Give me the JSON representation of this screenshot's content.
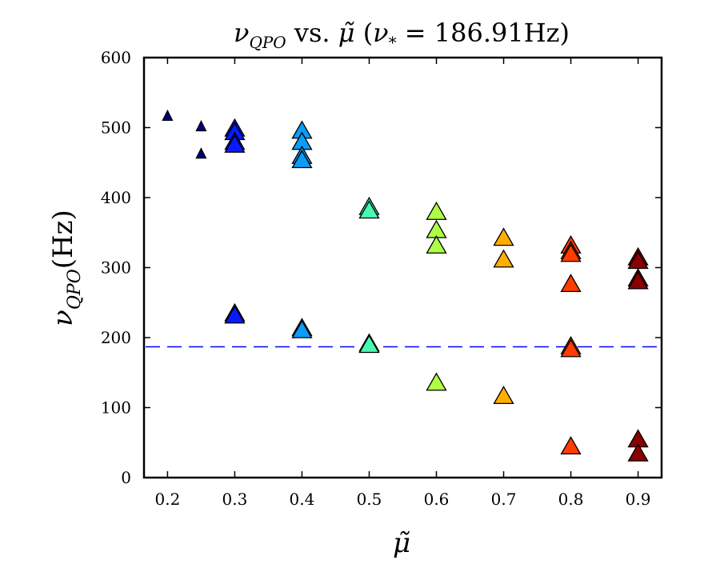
{
  "chart_data": {
    "type": "scatter",
    "title": "ν_QPO vs. μ̃ (ν* = 186.91Hz)",
    "title_parts": {
      "nu": "ν",
      "qpo_sub": "QPO",
      "vs": " vs. ",
      "mu": "μ̃",
      "open_paren": " (",
      "nu_star": "ν",
      "star_sub": "*",
      "equals_value": " = 186.91Hz)"
    },
    "xlabel": "μ̃",
    "ylabel": "ν_QPO(Hz)",
    "ylabel_parts": {
      "nu": "ν",
      "sub": "QPO",
      "unit": "(Hz)"
    },
    "xlim": [
      0.165,
      0.935
    ],
    "ylim": [
      0,
      600
    ],
    "x_ticks": [
      0.2,
      0.3,
      0.4,
      0.5,
      0.6,
      0.7,
      0.8,
      0.9
    ],
    "x_tick_labels": [
      "0.2",
      "0.3",
      "0.4",
      "0.5",
      "0.6",
      "0.7",
      "0.8",
      "0.9"
    ],
    "y_ticks": [
      0,
      100,
      200,
      300,
      400,
      500,
      600
    ],
    "y_tick_labels": [
      "0",
      "100",
      "200",
      "300",
      "400",
      "500",
      "600"
    ],
    "grid": false,
    "reference_line": {
      "y": 186.91,
      "label": "ν* = 186.91Hz",
      "color": "#0000ff",
      "style": "dashed"
    },
    "series": [
      {
        "name": "μ̃ = 0.2",
        "color": "#00007f",
        "marker_size": "small",
        "points": [
          [
            0.2,
            515
          ]
        ]
      },
      {
        "name": "μ̃ = 0.25",
        "color": "#00007f",
        "marker_size": "small",
        "points": [
          [
            0.25,
            500
          ],
          [
            0.25,
            461
          ]
        ]
      },
      {
        "name": "μ̃ = 0.3",
        "color": "#0a1aff",
        "marker_size": "large",
        "points": [
          [
            0.3,
            497
          ],
          [
            0.3,
            492
          ],
          [
            0.3,
            478
          ],
          [
            0.3,
            474
          ],
          [
            0.3,
            233
          ],
          [
            0.3,
            230
          ]
        ]
      },
      {
        "name": "μ̃ = 0.4",
        "color": "#0a9cf7",
        "marker_size": "large",
        "points": [
          [
            0.4,
            494
          ],
          [
            0.4,
            478
          ],
          [
            0.4,
            458
          ],
          [
            0.4,
            452
          ],
          [
            0.4,
            212
          ],
          [
            0.4,
            209
          ]
        ]
      },
      {
        "name": "μ̃ = 0.5",
        "color": "#49f9b0",
        "marker_size": "large",
        "points": [
          [
            0.5,
            385
          ],
          [
            0.5,
            380
          ],
          [
            0.5,
            190
          ],
          [
            0.5,
            188
          ]
        ]
      },
      {
        "name": "μ̃ = 0.6",
        "color": "#b0ff47",
        "marker_size": "large",
        "points": [
          [
            0.6,
            378
          ],
          [
            0.6,
            352
          ],
          [
            0.6,
            330
          ],
          [
            0.6,
            134
          ]
        ]
      },
      {
        "name": "μ̃ = 0.7",
        "color": "#ffae00",
        "marker_size": "large",
        "points": [
          [
            0.7,
            341
          ],
          [
            0.7,
            310
          ],
          [
            0.7,
            115
          ]
        ]
      },
      {
        "name": "μ̃ = 0.8",
        "color": "#ff3d00",
        "marker_size": "large",
        "points": [
          [
            0.8,
            330
          ],
          [
            0.8,
            322
          ],
          [
            0.8,
            318
          ],
          [
            0.8,
            275
          ],
          [
            0.8,
            186
          ],
          [
            0.8,
            182
          ],
          [
            0.8,
            43
          ]
        ]
      },
      {
        "name": "μ̃ = 0.9",
        "color": "#8a0000",
        "marker_size": "large",
        "points": [
          [
            0.9,
            313
          ],
          [
            0.9,
            308
          ],
          [
            0.9,
            283
          ],
          [
            0.9,
            279
          ],
          [
            0.9,
            53
          ],
          [
            0.9,
            33
          ]
        ]
      }
    ]
  }
}
